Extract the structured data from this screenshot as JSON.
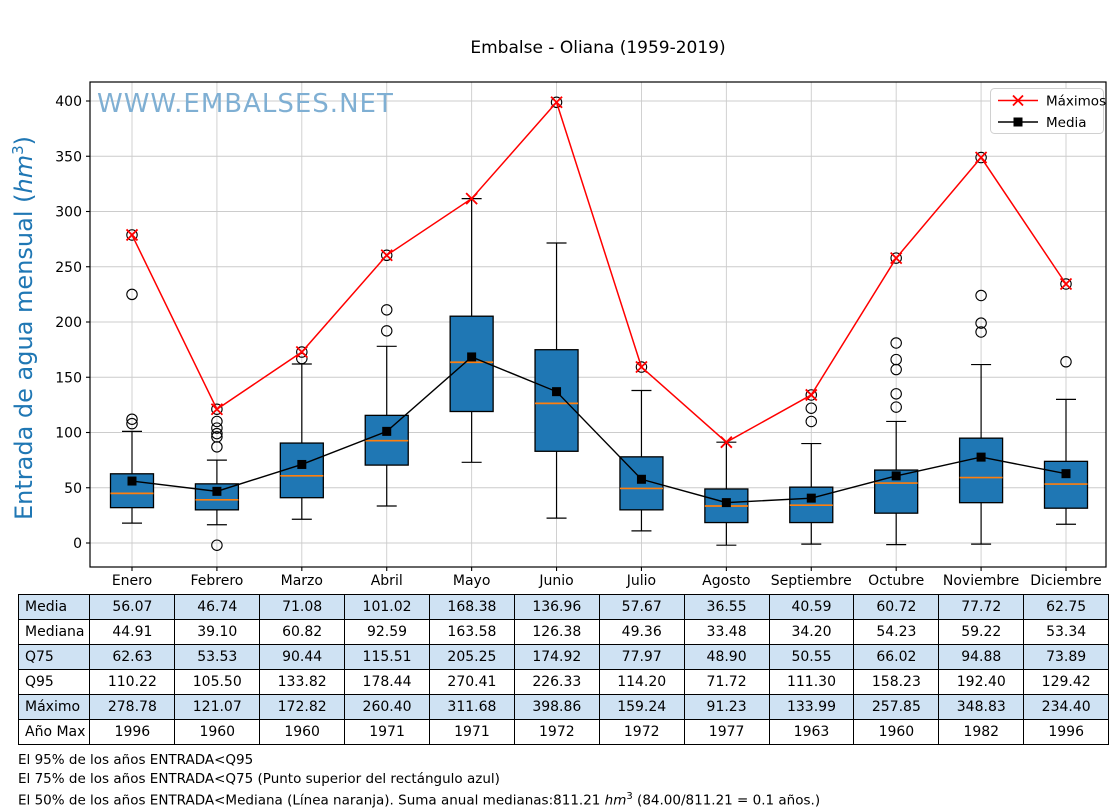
{
  "title": "Embalse - Oliana (1959-2019)",
  "watermark": "WWW.EMBALSES.NET",
  "ylabel": {
    "pre": "Entrada de agua mensual (",
    "unit": "hm",
    "sup": "3",
    "post": ")"
  },
  "chart_data": {
    "type": "boxplot",
    "title": "Embalse - Oliana (1959-2019)",
    "xlabel": "",
    "ylabel": "Entrada de agua mensual (hm3)",
    "categories": [
      "Enero",
      "Febrero",
      "Marzo",
      "Abril",
      "Mayo",
      "Junio",
      "Julio",
      "Agosto",
      "Septiembre",
      "Octubre",
      "Noviembre",
      "Diciembre"
    ],
    "yticks": [
      0,
      50,
      100,
      150,
      200,
      250,
      300,
      350,
      400
    ],
    "ylim": [
      -21,
      417
    ],
    "grid": true,
    "legend_position": "upper right",
    "series": [
      {
        "name": "Máximos",
        "type": "line",
        "color": "#ff0000",
        "marker": "x",
        "values": [
          278.78,
          121.07,
          172.82,
          260.4,
          311.68,
          398.86,
          159.24,
          91.23,
          133.99,
          257.85,
          348.83,
          234.4
        ]
      },
      {
        "name": "Media",
        "type": "line",
        "color": "#000000",
        "marker": "square",
        "values": [
          56.07,
          46.74,
          71.08,
          101.02,
          168.38,
          136.96,
          57.67,
          36.55,
          40.59,
          60.72,
          77.72,
          62.75
        ]
      }
    ],
    "boxplots": [
      {
        "month": "Enero",
        "whisker_low": 18,
        "q1": 32,
        "median": 44.91,
        "q3": 62.63,
        "whisker_high": 101,
        "outliers": [
          108,
          112,
          225
        ],
        "max": 278.78,
        "max_circled": true
      },
      {
        "month": "Febrero",
        "whisker_low": 16.5,
        "q1": 30,
        "median": 39.1,
        "q3": 53.53,
        "whisker_high": 75,
        "outliers": [
          -2,
          87,
          96,
          99,
          104,
          110
        ],
        "max": 121.07,
        "max_circled": true
      },
      {
        "month": "Marzo",
        "whisker_low": 21.5,
        "q1": 41,
        "median": 60.82,
        "q3": 90.44,
        "whisker_high": 162,
        "outliers": [
          167
        ],
        "max": 172.82,
        "max_circled": true
      },
      {
        "month": "Abril",
        "whisker_low": 33.5,
        "q1": 70.5,
        "median": 92.59,
        "q3": 115.51,
        "whisker_high": 178,
        "outliers": [
          192,
          211
        ],
        "max": 260.4,
        "max_circled": true
      },
      {
        "month": "Mayo",
        "whisker_low": 73,
        "q1": 119,
        "median": 163.58,
        "q3": 205.25,
        "whisker_high": 311.68,
        "outliers": [],
        "max": 311.68,
        "max_circled": false
      },
      {
        "month": "Junio",
        "whisker_low": 22.5,
        "q1": 83,
        "median": 126.38,
        "q3": 174.92,
        "whisker_high": 271.5,
        "outliers": [],
        "max": 398.86,
        "max_circled": true
      },
      {
        "month": "Julio",
        "whisker_low": 11,
        "q1": 30,
        "median": 49.36,
        "q3": 77.97,
        "whisker_high": 138,
        "outliers": [],
        "max": 159.24,
        "max_circled": true
      },
      {
        "month": "Agosto",
        "whisker_low": -2,
        "q1": 18.5,
        "median": 33.48,
        "q3": 48.9,
        "whisker_high": 91.23,
        "outliers": [],
        "max": 91.23,
        "max_circled": false
      },
      {
        "month": "Septiembre",
        "whisker_low": -1,
        "q1": 18.5,
        "median": 34.2,
        "q3": 50.55,
        "whisker_high": 90,
        "outliers": [
          110,
          122
        ],
        "max": 133.99,
        "max_circled": true
      },
      {
        "month": "Octubre",
        "whisker_low": -1.5,
        "q1": 27,
        "median": 54.23,
        "q3": 66.02,
        "whisker_high": 110,
        "outliers": [
          123,
          135,
          157,
          166,
          181
        ],
        "max": 257.85,
        "max_circled": true
      },
      {
        "month": "Noviembre",
        "whisker_low": -1,
        "q1": 36.5,
        "median": 59.22,
        "q3": 94.88,
        "whisker_high": 161.5,
        "outliers": [
          191,
          199,
          224
        ],
        "max": 348.83,
        "max_circled": true
      },
      {
        "month": "Diciembre",
        "whisker_low": 17,
        "q1": 31.5,
        "median": 53.34,
        "q3": 73.89,
        "whisker_high": 130,
        "outliers": [
          164
        ],
        "max": 234.4,
        "max_circled": true
      }
    ],
    "colors": {
      "box_fill": "#1f77b4",
      "median_line": "#ff7f0e",
      "max_line": "#ff0000",
      "mean_line": "#000000",
      "axis_label": "#1f77b4",
      "watermark": "#7fafd3",
      "grid": "#cccccc",
      "table_shade": "#cfe2f3"
    }
  },
  "table": {
    "row_labels": [
      "Media",
      "Mediana",
      "Q75",
      "Q95",
      "Máximo",
      "Año Max"
    ],
    "columns": [
      "Enero",
      "Febrero",
      "Marzo",
      "Abril",
      "Mayo",
      "Junio",
      "Julio",
      "Agosto",
      "Septiembre",
      "Octubre",
      "Noviembre",
      "Diciembre"
    ],
    "rows": [
      [
        "56.07",
        "46.74",
        "71.08",
        "101.02",
        "168.38",
        "136.96",
        "57.67",
        "36.55",
        "40.59",
        "60.72",
        "77.72",
        "62.75"
      ],
      [
        "44.91",
        "39.10",
        "60.82",
        "92.59",
        "163.58",
        "126.38",
        "49.36",
        "33.48",
        "34.20",
        "54.23",
        "59.22",
        "53.34"
      ],
      [
        "62.63",
        "53.53",
        "90.44",
        "115.51",
        "205.25",
        "174.92",
        "77.97",
        "48.90",
        "50.55",
        "66.02",
        "94.88",
        "73.89"
      ],
      [
        "110.22",
        "105.50",
        "133.82",
        "178.44",
        "270.41",
        "226.33",
        "114.20",
        "71.72",
        "111.30",
        "158.23",
        "192.40",
        "129.42"
      ],
      [
        "278.78",
        "121.07",
        "172.82",
        "260.40",
        "311.68",
        "398.86",
        "159.24",
        "91.23",
        "133.99",
        "257.85",
        "348.83",
        "234.40"
      ],
      [
        "1996",
        "1960",
        "1960",
        "1971",
        "1971",
        "1972",
        "1972",
        "1977",
        "1963",
        "1960",
        "1982",
        "1996"
      ]
    ]
  },
  "footnotes": {
    "line1": "El 95% de los años ENTRADA<Q95",
    "line2": "El 75% de los años ENTRADA<Q75 (Punto superior del rectángulo azul)",
    "line3_pre": "El 50% de los años ENTRADA<Mediana (Línea naranja). Suma anual medianas:811.21 ",
    "line3_unit": "hm",
    "line3_sup": "3",
    "line3_post": " (84.00/811.21 = 0.1 años.)"
  }
}
